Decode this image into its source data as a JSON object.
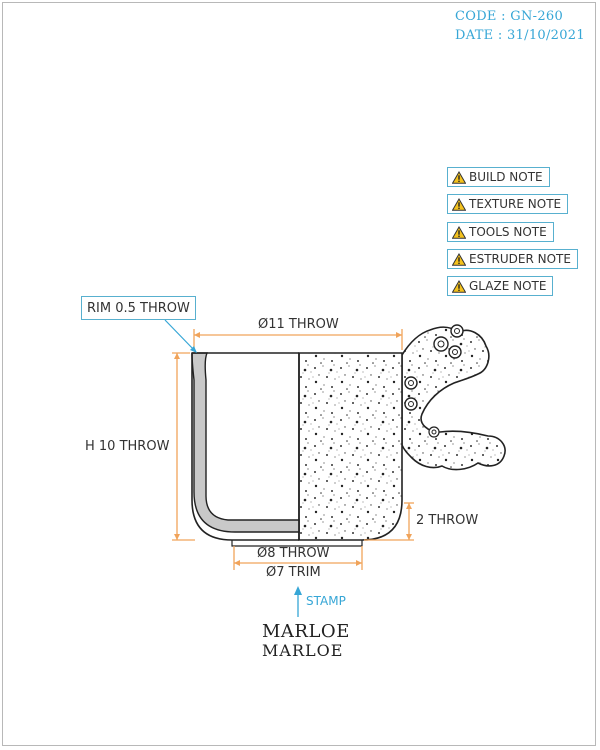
{
  "header": {
    "code": "CODE : GN-260",
    "date": "DATE : 31/10/2021"
  },
  "notes": [
    {
      "label": "BUILD NOTE",
      "icon": "warning-icon"
    },
    {
      "label": "TEXTURE NOTE",
      "icon": "warning-icon"
    },
    {
      "label": "TOOLS NOTE",
      "icon": "warning-icon"
    },
    {
      "label": "ESTRUDER NOTE",
      "icon": "warning-icon"
    },
    {
      "label": "GLAZE NOTE",
      "icon": "warning-icon"
    }
  ],
  "dimensions": {
    "rim": "RIM 0.5 THROW",
    "top_diameter": "Ø11 THROW",
    "height": "H 10 THROW",
    "foot_height": "2 THROW",
    "base_diameter": "Ø8 THROW",
    "trim_diameter": "Ø7 TRIM"
  },
  "stamp": {
    "label": "STAMP",
    "brand_top": "MARLOE",
    "brand_bottom": "MARLOE"
  },
  "colors": {
    "accent": "#36a6d6",
    "dimension": "#f0a35a",
    "outline": "#222222",
    "wall_section": "#c9c9c9"
  }
}
